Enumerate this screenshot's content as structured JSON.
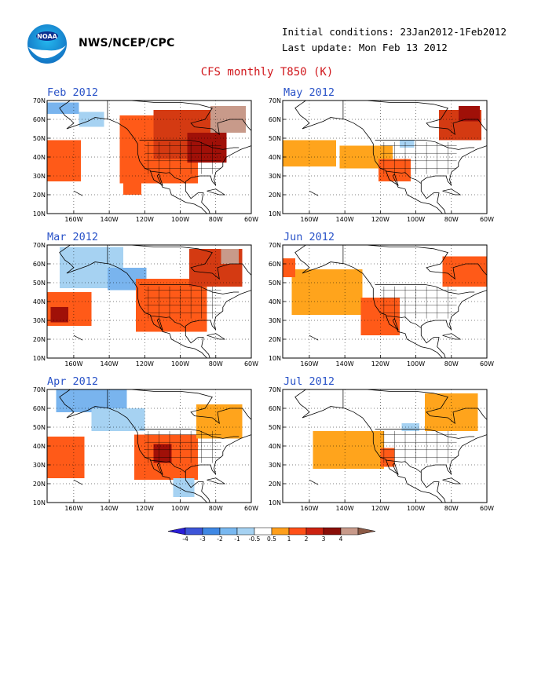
{
  "header": {
    "org": "NWS/NCEP/CPC",
    "logo_text": "NOAA",
    "initial_conditions": "Initial conditions: 23Jan2012-1Feb2012",
    "last_update": "Last update: Mon Feb 13 2012",
    "title": "CFS monthly T850 (K)"
  },
  "axes": {
    "lat_labels": [
      "70N",
      "60N",
      "50N",
      "40N",
      "30N",
      "20N",
      "10N"
    ],
    "lon_labels": [
      "160W",
      "140W",
      "120W",
      "100W",
      "80W",
      "60W"
    ]
  },
  "panels": [
    {
      "title": "Feb 2012",
      "anomalies": [
        {
          "lon": -168,
          "lat": 66,
          "w": 22,
          "h": 6,
          "v": -1.2
        },
        {
          "lon": -150,
          "lat": 60,
          "w": 14,
          "h": 8,
          "v": -0.8
        },
        {
          "lon": -170,
          "lat": 38,
          "w": 28,
          "h": 22,
          "v": 1.4
        },
        {
          "lon": -112,
          "lat": 44,
          "w": 44,
          "h": 36,
          "v": 1.2
        },
        {
          "lon": -95,
          "lat": 52,
          "w": 40,
          "h": 26,
          "v": 1.8
        },
        {
          "lon": -85,
          "lat": 45,
          "w": 22,
          "h": 16,
          "v": 2.5
        },
        {
          "lon": -73,
          "lat": 60,
          "w": 20,
          "h": 14,
          "v": 3.2
        },
        {
          "lon": -127,
          "lat": 25,
          "w": 10,
          "h": 10,
          "v": 1.0
        }
      ]
    },
    {
      "title": "May 2012",
      "anomalies": [
        {
          "lon": -160,
          "lat": 42,
          "w": 30,
          "h": 14,
          "v": 0.8
        },
        {
          "lon": -128,
          "lat": 40,
          "w": 30,
          "h": 12,
          "v": 0.8
        },
        {
          "lon": -112,
          "lat": 33,
          "w": 18,
          "h": 12,
          "v": 1.3
        },
        {
          "lon": -75,
          "lat": 57,
          "w": 24,
          "h": 16,
          "v": 1.5
        },
        {
          "lon": -70,
          "lat": 63,
          "w": 12,
          "h": 8,
          "v": 2.4
        },
        {
          "lon": -105,
          "lat": 47,
          "w": 8,
          "h": 4,
          "v": -0.8
        }
      ]
    },
    {
      "title": "Mar 2012",
      "anomalies": [
        {
          "lon": -150,
          "lat": 58,
          "w": 36,
          "h": 22,
          "v": -0.8
        },
        {
          "lon": -130,
          "lat": 52,
          "w": 22,
          "h": 12,
          "v": -1.3
        },
        {
          "lon": -164,
          "lat": 36,
          "w": 28,
          "h": 18,
          "v": 1.3
        },
        {
          "lon": -168,
          "lat": 33,
          "w": 10,
          "h": 8,
          "v": 2.4
        },
        {
          "lon": -105,
          "lat": 38,
          "w": 40,
          "h": 28,
          "v": 1.1
        },
        {
          "lon": -80,
          "lat": 58,
          "w": 30,
          "h": 20,
          "v": 1.6
        },
        {
          "lon": -72,
          "lat": 64,
          "w": 10,
          "h": 8,
          "v": 3.2
        }
      ]
    },
    {
      "title": "Jun 2012",
      "anomalies": [
        {
          "lon": -150,
          "lat": 45,
          "w": 40,
          "h": 24,
          "v": 0.8
        },
        {
          "lon": -120,
          "lat": 32,
          "w": 22,
          "h": 20,
          "v": 1.2
        },
        {
          "lon": -113,
          "lat": 36,
          "w": 8,
          "h": 8,
          "v": 1.4
        },
        {
          "lon": -72,
          "lat": 56,
          "w": 26,
          "h": 16,
          "v": 1.3
        },
        {
          "lon": -172,
          "lat": 58,
          "w": 8,
          "h": 10,
          "v": 1.2
        }
      ]
    },
    {
      "title": "Apr 2012",
      "anomalies": [
        {
          "lon": -150,
          "lat": 64,
          "w": 40,
          "h": 12,
          "v": -1.3
        },
        {
          "lon": -135,
          "lat": 54,
          "w": 30,
          "h": 12,
          "v": -0.8
        },
        {
          "lon": -166,
          "lat": 34,
          "w": 24,
          "h": 22,
          "v": 1.3
        },
        {
          "lon": -108,
          "lat": 34,
          "w": 36,
          "h": 24,
          "v": 1.4
        },
        {
          "lon": -110,
          "lat": 36,
          "w": 10,
          "h": 10,
          "v": 2.3
        },
        {
          "lon": -78,
          "lat": 53,
          "w": 26,
          "h": 18,
          "v": 0.8
        },
        {
          "lon": -98,
          "lat": 18,
          "w": 12,
          "h": 10,
          "v": -0.8
        }
      ]
    },
    {
      "title": "Jul 2012",
      "anomalies": [
        {
          "lon": -138,
          "lat": 38,
          "w": 40,
          "h": 20,
          "v": 0.8
        },
        {
          "lon": -116,
          "lat": 34,
          "w": 8,
          "h": 10,
          "v": 1.3
        },
        {
          "lon": -80,
          "lat": 58,
          "w": 30,
          "h": 20,
          "v": 0.8
        },
        {
          "lon": -103,
          "lat": 50,
          "w": 10,
          "h": 4,
          "v": -0.8
        }
      ]
    }
  ],
  "colorbar": {
    "labels": [
      "-4",
      "-3",
      "-2",
      "-1",
      "-0.5",
      "0.5",
      "1",
      "2",
      "3",
      "4"
    ],
    "colors": [
      "#2a1ed8",
      "#3d55d8",
      "#3f88e4",
      "#79b8f0",
      "#a6d2f2",
      "#ffffff",
      "#ff9f1c",
      "#ff5018",
      "#cc2210",
      "#8a0e08",
      "#c89a8a",
      "#8c5a46"
    ]
  }
}
